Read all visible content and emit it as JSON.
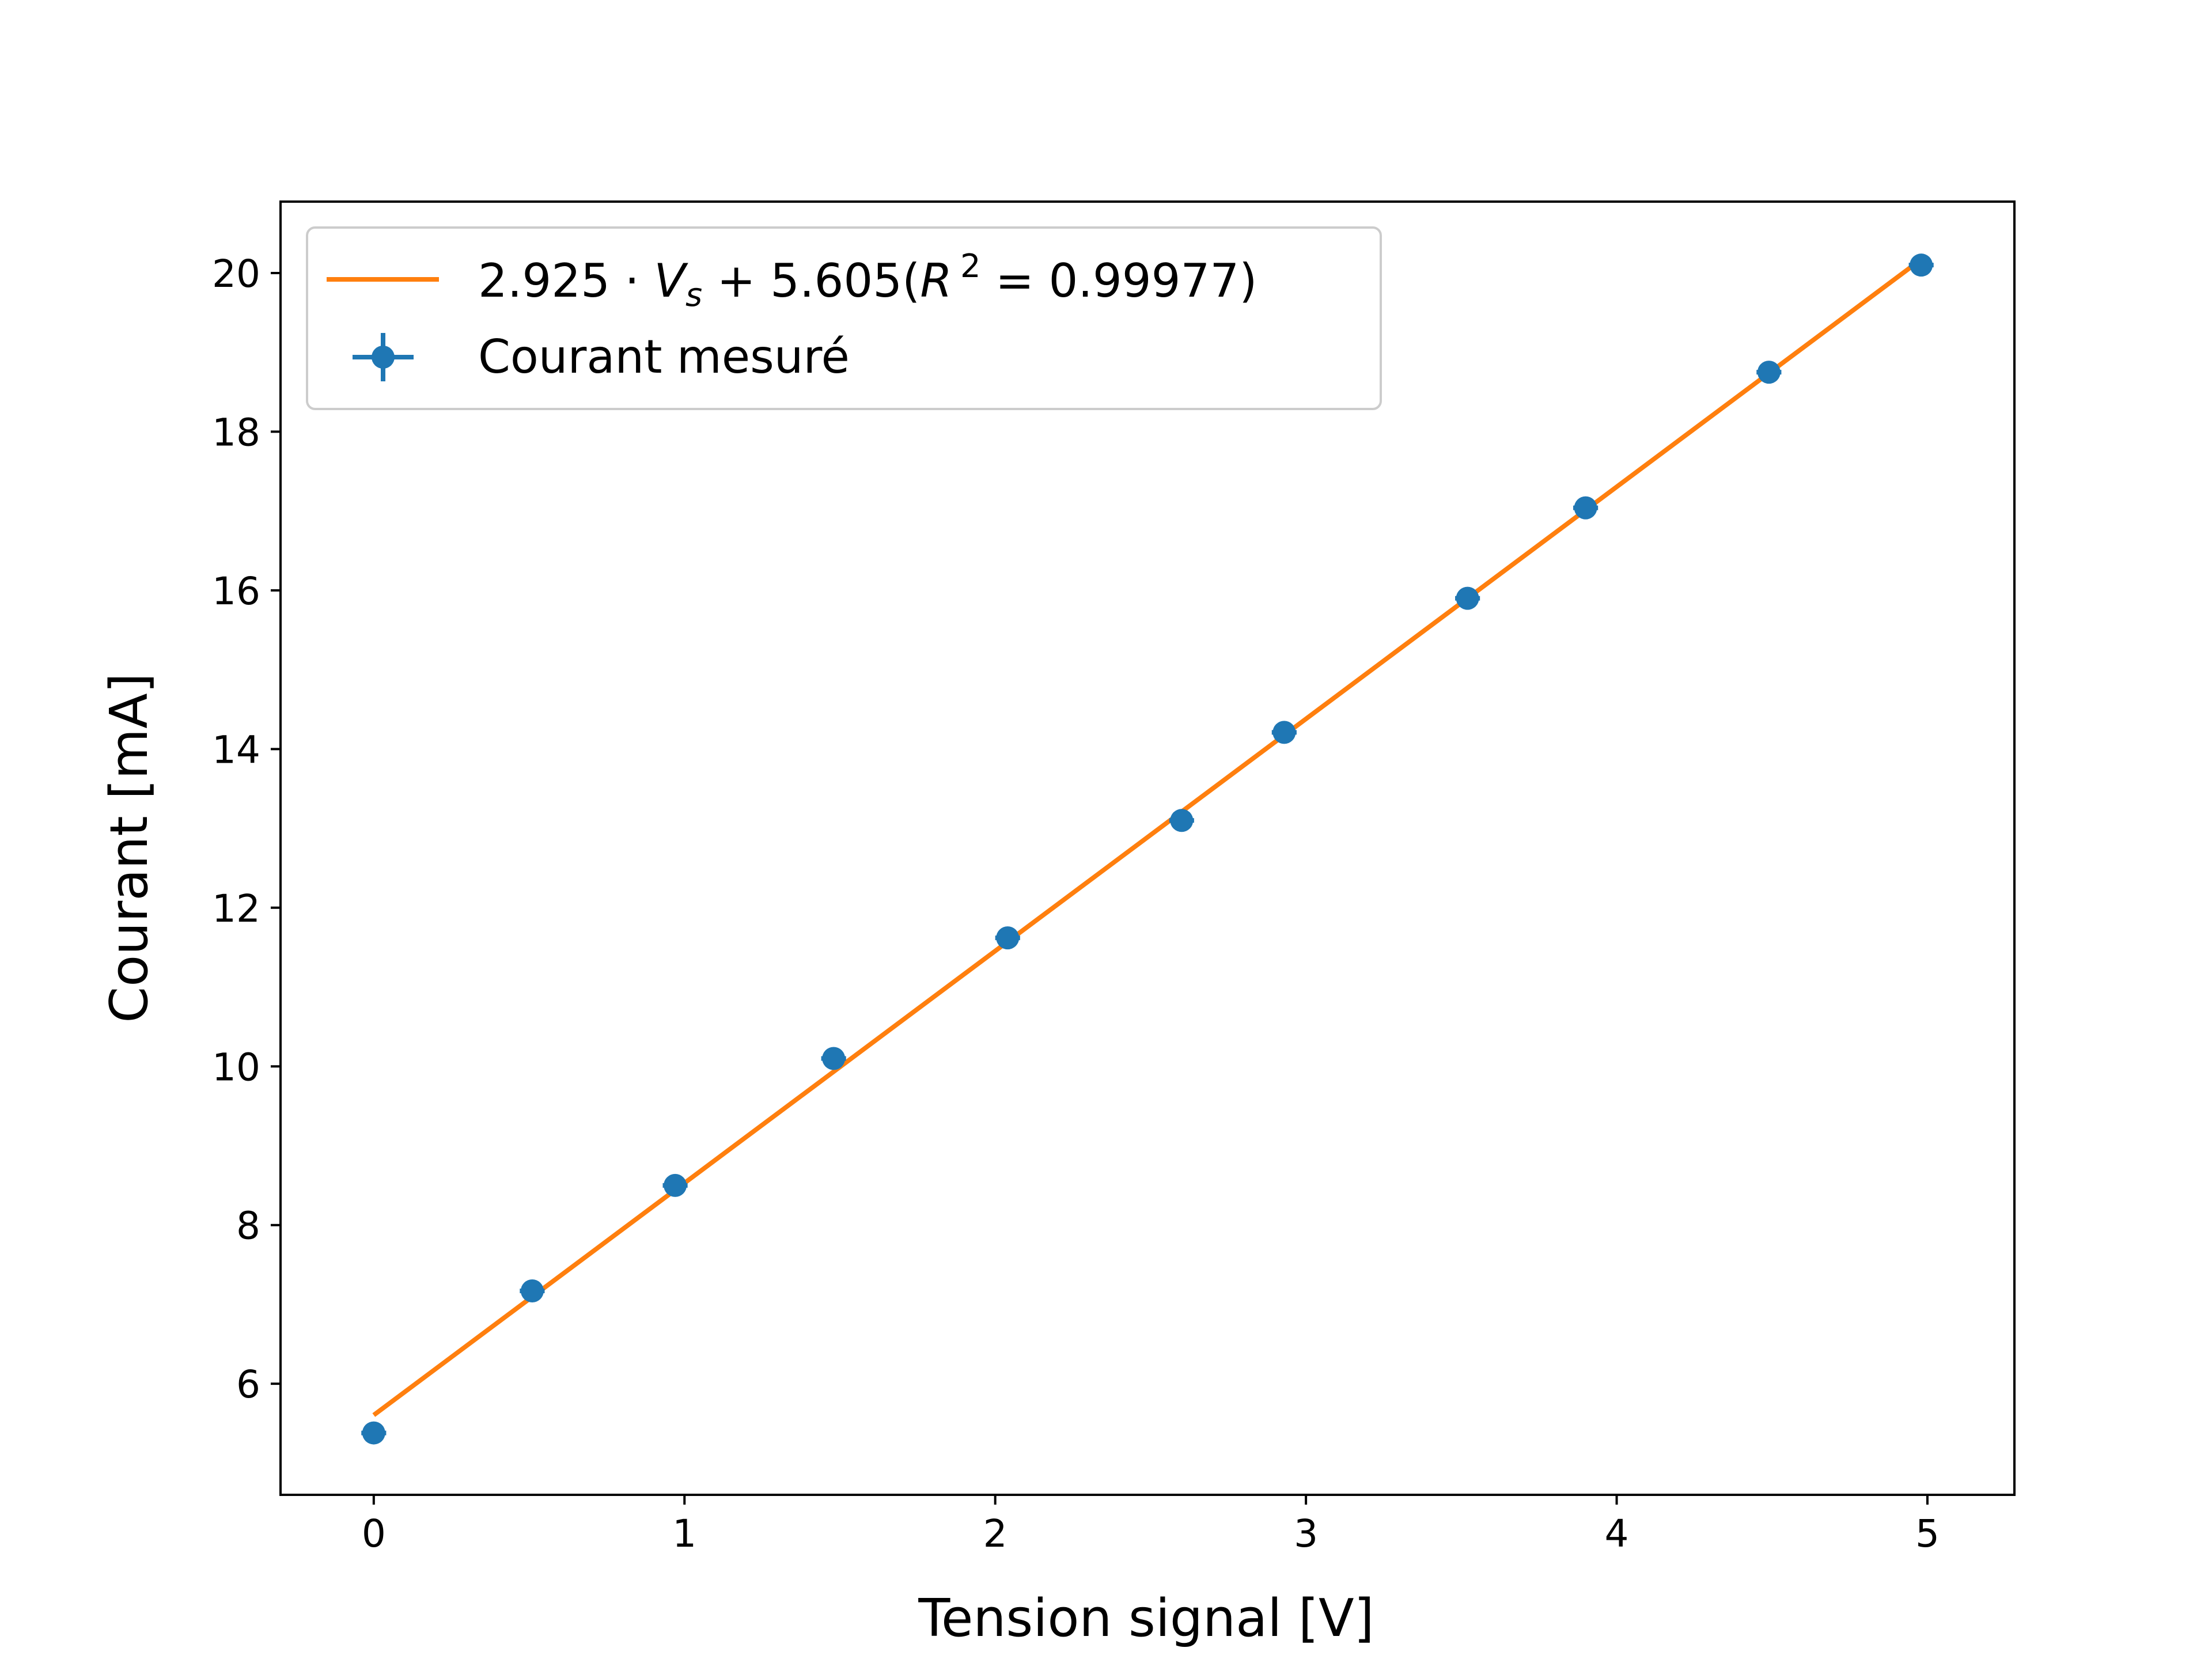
{
  "chart_data": {
    "type": "scatter",
    "xlabel": "Tension signal [V]",
    "ylabel": "Courant [mA]",
    "xlim": [
      -0.3,
      5.28
    ],
    "ylim": [
      4.6,
      20.9
    ],
    "x_ticks": [
      0,
      1,
      2,
      3,
      4,
      5
    ],
    "y_ticks": [
      6,
      8,
      10,
      12,
      14,
      16,
      18,
      20
    ],
    "grid": false,
    "legend_position": "top-left",
    "series": [
      {
        "name": "2.925 · Vs + 5.605(R² = 0.99977)",
        "kind": "line",
        "color": "#ff7f0e",
        "slope": 2.925,
        "intercept": 5.605,
        "x_range": [
          0,
          4.98
        ]
      },
      {
        "name": "Courant mesuré",
        "kind": "errorbar-scatter",
        "color": "#1f77b4",
        "x": [
          0.0,
          0.51,
          0.97,
          1.48,
          2.04,
          2.6,
          2.93,
          3.52,
          3.9,
          4.49,
          4.98
        ],
        "y": [
          5.38,
          7.17,
          8.5,
          10.1,
          11.62,
          13.1,
          14.21,
          15.9,
          17.04,
          18.75,
          20.1
        ],
        "xerr": 0.04,
        "yerr": 0.04
      }
    ]
  },
  "legend": {
    "fit_prefix": "2.925 · ",
    "fit_var": "V",
    "fit_sub": "s",
    "fit_mid": " + 5.605(",
    "fit_r": "R",
    "fit_sup": "2",
    "fit_suffix": " = 0.99977)",
    "data_label": "Courant mesuré"
  }
}
